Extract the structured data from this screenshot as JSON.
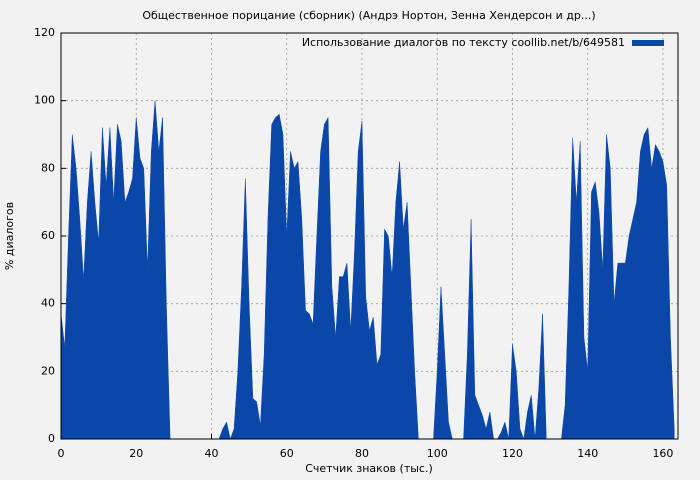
{
  "chart_data": {
    "type": "area",
    "title": "Общественное порицание (сборник) (Андрэ Нортон, Зенна Хендерсон и др...)",
    "x_label": "Счетчик знаков (тыс.)",
    "y_label": "% диалогов",
    "xlim": [
      0,
      164
    ],
    "ylim": [
      0,
      120
    ],
    "xticks": [
      0,
      20,
      40,
      60,
      80,
      100,
      120,
      140,
      160
    ],
    "yticks": [
      0,
      20,
      40,
      60,
      80,
      100,
      120
    ],
    "grid": true,
    "legend": "top-right",
    "x": [
      0,
      1,
      2,
      3,
      4,
      5,
      6,
      7,
      8,
      9,
      10,
      11,
      12,
      13,
      14,
      15,
      16,
      17,
      18,
      19,
      20,
      21,
      22,
      23,
      24,
      25,
      26,
      27,
      28,
      29,
      30,
      31,
      32,
      33,
      34,
      35,
      36,
      37,
      38,
      39,
      40,
      41,
      42,
      43,
      44,
      45,
      46,
      47,
      48,
      49,
      50,
      51,
      52,
      53,
      54,
      55,
      56,
      57,
      58,
      59,
      60,
      61,
      62,
      63,
      64,
      65,
      66,
      67,
      68,
      69,
      70,
      71,
      72,
      73,
      74,
      75,
      76,
      77,
      78,
      79,
      80,
      81,
      82,
      83,
      84,
      85,
      86,
      87,
      88,
      89,
      90,
      91,
      92,
      93,
      94,
      95,
      96,
      97,
      98,
      99,
      100,
      101,
      102,
      103,
      104,
      105,
      106,
      107,
      108,
      109,
      110,
      111,
      112,
      113,
      114,
      115,
      116,
      117,
      118,
      119,
      120,
      121,
      122,
      123,
      124,
      125,
      126,
      127,
      128,
      129,
      130,
      131,
      132,
      133,
      134,
      135,
      136,
      137,
      138,
      139,
      140,
      141,
      142,
      143,
      144,
      145,
      146,
      147,
      148,
      149,
      150,
      151,
      152,
      153,
      154,
      155,
      156,
      157,
      158,
      159,
      160,
      161,
      162,
      163
    ],
    "series": [
      {
        "name": "Использование диалогов по тексту coollib.net/b/649581",
        "color": "#0a47a8",
        "values": [
          37,
          27,
          60,
          90,
          80,
          65,
          47,
          70,
          85,
          70,
          58,
          92,
          75,
          92,
          70,
          93,
          88,
          70,
          73,
          77,
          95,
          83,
          80,
          50,
          85,
          100,
          85,
          95,
          40,
          0,
          0,
          0,
          0,
          0,
          0,
          0,
          0,
          0,
          0,
          0,
          0,
          0,
          0,
          3,
          5,
          0,
          3,
          20,
          45,
          77,
          40,
          12,
          11,
          4,
          25,
          65,
          93,
          95,
          96,
          90,
          60,
          85,
          80,
          82,
          65,
          38,
          37,
          34,
          60,
          85,
          93,
          95,
          45,
          30,
          48,
          48,
          52,
          32,
          55,
          85,
          94,
          42,
          32,
          36,
          22,
          25,
          62,
          60,
          48,
          70,
          82,
          62,
          70,
          45,
          20,
          0,
          0,
          0,
          0,
          0,
          20,
          45,
          25,
          5,
          0,
          0,
          0,
          0,
          25,
          65,
          13,
          10,
          7,
          3,
          8,
          0,
          0,
          2,
          5,
          0,
          28,
          20,
          3,
          0,
          8,
          13,
          0,
          15,
          37,
          0,
          0,
          0,
          0,
          0,
          10,
          45,
          89,
          70,
          88,
          30,
          20,
          73,
          76,
          67,
          50,
          90,
          80,
          40,
          52,
          52,
          52,
          60,
          65,
          70,
          85,
          90,
          92,
          80,
          87,
          85,
          82,
          75,
          30,
          3
        ]
      }
    ]
  }
}
